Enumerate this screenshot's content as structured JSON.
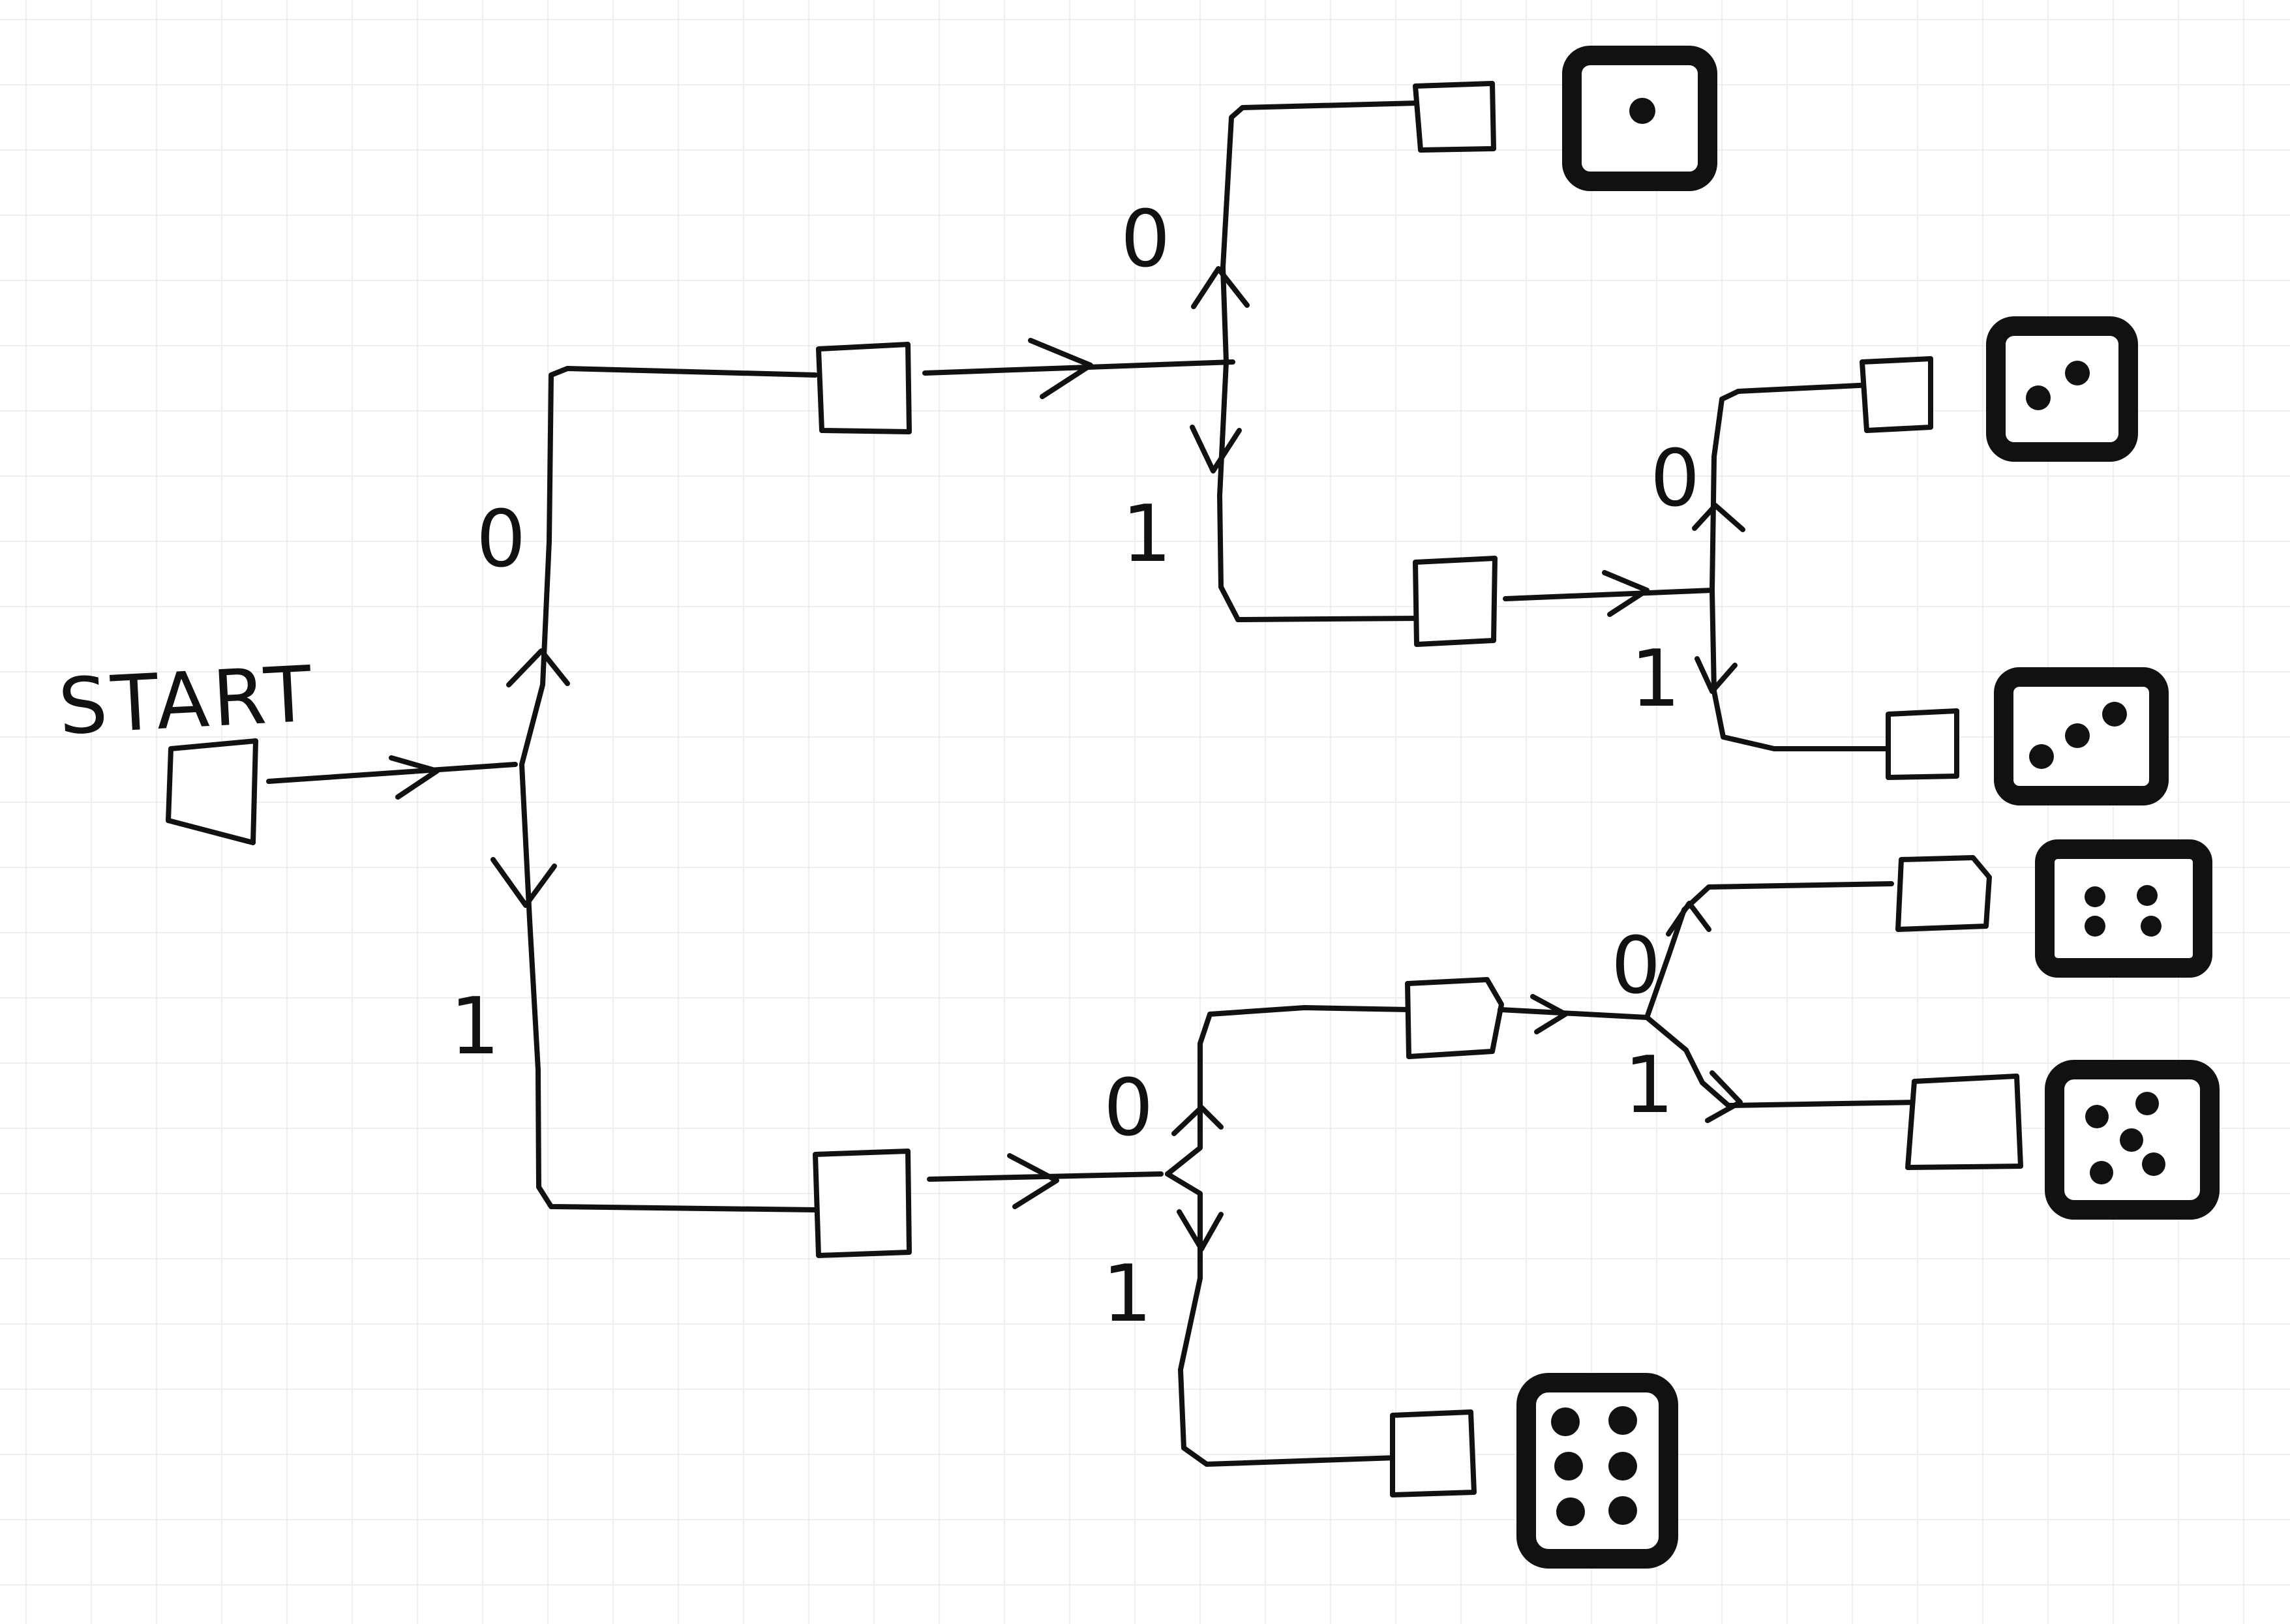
{
  "diagram": {
    "start_label": "START",
    "branch_zero": "0",
    "branch_one": "1"
  }
}
